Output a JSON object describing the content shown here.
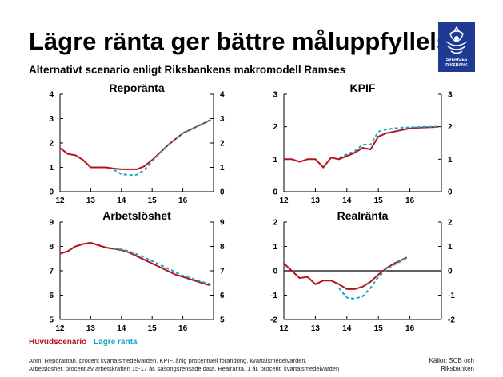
{
  "slide": {
    "title": "Lägre ränta ger bättre måluppfyllelse",
    "subtitle": "Alternativt scenario enligt Riksbankens makromodell Ramses",
    "logo_text": "SVERIGES RIKSBANK",
    "legend": [
      {
        "label": "Huvudscenario",
        "color": "#b5121b"
      },
      {
        "label": "Lägre ränta",
        "color": "#1aa3c8"
      }
    ],
    "note_lines": [
      "Anm. Reporäntan, procent kvartalsmedelvärden. KPIF, årlig procentuell förändring, kvartalsmedelvärden.",
      "Arbetslöshet, procent av arbetskraften 15-17 år, säsongsrensade data. Realränta, 1 år, procent, kvartalsmedelvärden"
    ],
    "source_lines": [
      "Källor: SCB och",
      "Riksbanken"
    ],
    "colors": {
      "baseline": "#b5121b",
      "alternative": "#1aa3c8",
      "logo": "#1f3a93"
    }
  },
  "chart_data": [
    {
      "type": "line",
      "title": "Reporänta",
      "xlim": [
        12,
        17
      ],
      "ylim": [
        0,
        4
      ],
      "xticks": [
        "12",
        "13",
        "14",
        "15",
        "16"
      ],
      "yticks": [
        "0",
        "1",
        "2",
        "3",
        "4"
      ],
      "series": [
        {
          "name": "Huvudscenario",
          "x": [
            12,
            12.25,
            12.5,
            12.75,
            13,
            13.25,
            13.5,
            13.75,
            14,
            14.25,
            14.5,
            14.75,
            15,
            15.25,
            15.5,
            15.75,
            16,
            16.25,
            16.5,
            16.75,
            16.9
          ],
          "y": [
            1.8,
            1.55,
            1.5,
            1.3,
            1.0,
            1.0,
            1.0,
            0.95,
            0.92,
            0.92,
            0.92,
            1.05,
            1.3,
            1.6,
            1.9,
            2.15,
            2.4,
            2.55,
            2.7,
            2.85,
            2.95
          ]
        },
        {
          "name": "Lägre ränta",
          "x": [
            13.75,
            14,
            14.25,
            14.5,
            14.75,
            15,
            15.25,
            15.5,
            15.75,
            16,
            16.25,
            16.5,
            16.75,
            16.9
          ],
          "y": [
            0.9,
            0.72,
            0.68,
            0.7,
            0.9,
            1.25,
            1.58,
            1.9,
            2.15,
            2.4,
            2.55,
            2.7,
            2.85,
            2.95
          ]
        }
      ]
    },
    {
      "type": "line",
      "title": "KPIF",
      "xlim": [
        12,
        17
      ],
      "ylim": [
        0,
        3
      ],
      "xticks": [
        "12",
        "13",
        "14",
        "15",
        "16"
      ],
      "yticks": [
        "0",
        "1",
        "2",
        "3"
      ],
      "series": [
        {
          "name": "Huvudscenario",
          "x": [
            12,
            12.25,
            12.5,
            12.75,
            13,
            13.25,
            13.5,
            13.75,
            14,
            14.25,
            14.5,
            14.75,
            15,
            15.25,
            15.5,
            15.75,
            16,
            16.25,
            16.5,
            16.75,
            16.9
          ],
          "y": [
            1.0,
            1.0,
            0.92,
            1.0,
            1.0,
            0.75,
            1.05,
            1.0,
            1.1,
            1.2,
            1.35,
            1.3,
            1.7,
            1.8,
            1.85,
            1.9,
            1.95,
            1.97,
            1.98,
            1.99,
            2.0
          ]
        },
        {
          "name": "Lägre ränta",
          "x": [
            13.75,
            14,
            14.25,
            14.5,
            14.75,
            15,
            15.25,
            15.5,
            15.75,
            16,
            16.25,
            16.5,
            16.75,
            16.9
          ],
          "y": [
            1.05,
            1.15,
            1.25,
            1.45,
            1.45,
            1.85,
            1.92,
            1.95,
            1.97,
            1.98,
            1.99,
            2.0,
            2.0,
            2.0
          ]
        }
      ]
    },
    {
      "type": "line",
      "title": "Arbetslöshet",
      "xlim": [
        12,
        17
      ],
      "ylim": [
        5,
        9
      ],
      "xticks": [
        "12",
        "13",
        "14",
        "15",
        "16"
      ],
      "yticks": [
        "5",
        "6",
        "7",
        "8",
        "9"
      ],
      "series": [
        {
          "name": "Huvudscenario",
          "x": [
            12,
            12.25,
            12.5,
            12.75,
            13,
            13.25,
            13.5,
            13.75,
            14,
            14.25,
            14.5,
            14.75,
            15,
            15.25,
            15.5,
            15.75,
            16,
            16.25,
            16.5,
            16.75,
            16.9
          ],
          "y": [
            7.7,
            7.8,
            8.0,
            8.1,
            8.15,
            8.05,
            7.95,
            7.9,
            7.85,
            7.75,
            7.6,
            7.45,
            7.3,
            7.15,
            7.0,
            6.85,
            6.75,
            6.65,
            6.55,
            6.45,
            6.4
          ]
        },
        {
          "name": "Lägre ränta",
          "x": [
            13.75,
            14,
            14.25,
            14.5,
            14.75,
            15,
            15.25,
            15.5,
            15.75,
            16,
            16.25,
            16.5,
            16.75,
            16.9
          ],
          "y": [
            7.9,
            7.88,
            7.8,
            7.68,
            7.55,
            7.4,
            7.25,
            7.1,
            6.95,
            6.8,
            6.7,
            6.6,
            6.5,
            6.45
          ]
        }
      ]
    },
    {
      "type": "line",
      "title": "Realränta",
      "xlim": [
        12,
        17
      ],
      "ylim": [
        -2,
        2
      ],
      "xticks": [
        "12",
        "13",
        "14",
        "15",
        "16"
      ],
      "yticks": [
        "-2",
        "-1",
        "0",
        "1",
        "2"
      ],
      "series": [
        {
          "name": "Huvudscenario",
          "x": [
            12,
            12.25,
            12.5,
            12.75,
            13,
            13.25,
            13.5,
            13.75,
            14,
            14.25,
            14.5,
            14.75,
            15,
            15.25,
            15.5,
            15.75,
            15.9
          ],
          "y": [
            0.3,
            0.0,
            -0.3,
            -0.25,
            -0.55,
            -0.4,
            -0.4,
            -0.55,
            -0.75,
            -0.75,
            -0.65,
            -0.45,
            -0.15,
            0.1,
            0.3,
            0.45,
            0.55
          ]
        },
        {
          "name": "Lägre ränta",
          "x": [
            13.75,
            14,
            14.25,
            14.5,
            14.75,
            15,
            15.25,
            15.5,
            15.75,
            15.9
          ],
          "y": [
            -0.7,
            -1.1,
            -1.15,
            -1.05,
            -0.7,
            -0.25,
            0.05,
            0.25,
            0.42,
            0.52
          ]
        }
      ]
    }
  ]
}
